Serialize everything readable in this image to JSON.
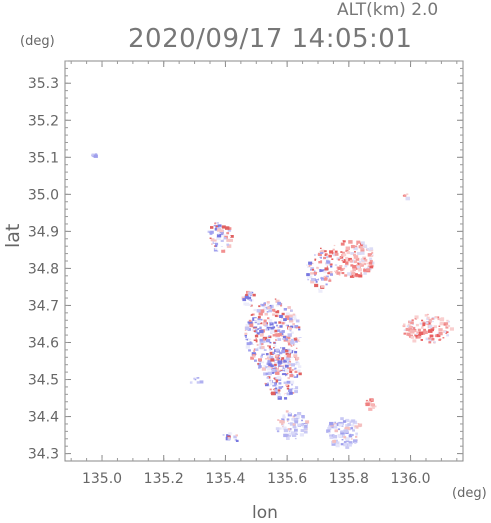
{
  "header": {
    "altitude": "ALT(km) 2.0",
    "datetime": "2020/09/17 14:05:01"
  },
  "chart_data": {
    "type": "heatmap",
    "title": "2020/09/17 14:05:01",
    "subtitle": "ALT(km) 2.0",
    "xlabel": "lon",
    "ylabel": "lat",
    "x_unit": "(deg)",
    "y_unit": "(deg)",
    "xlim": [
      134.88,
      136.17
    ],
    "ylim": [
      34.28,
      35.36
    ],
    "x_ticks": [
      "135.0",
      "135.2",
      "135.4",
      "135.6",
      "135.8",
      "136.0"
    ],
    "y_ticks": [
      "34.3",
      "34.4",
      "34.5",
      "34.6",
      "34.7",
      "34.8",
      "34.9",
      "35.0",
      "35.1",
      "35.2",
      "35.3"
    ],
    "grid": false,
    "colors": {
      "positive": "#f08080",
      "negative": "#8c8cf0",
      "neutral": "#d8d8f4"
    },
    "echo_regions": [
      {
        "lon": 135.55,
        "lat": 34.62,
        "rlon": 0.09,
        "rlat": 0.1,
        "tone": "mixed"
      },
      {
        "lon": 135.58,
        "lat": 34.52,
        "rlon": 0.06,
        "rlat": 0.07,
        "tone": "mixed"
      },
      {
        "lon": 135.61,
        "lat": 34.38,
        "rlon": 0.05,
        "rlat": 0.04,
        "tone": "blue"
      },
      {
        "lon": 135.78,
        "lat": 34.36,
        "rlon": 0.06,
        "rlat": 0.04,
        "tone": "blue"
      },
      {
        "lon": 135.8,
        "lat": 34.83,
        "rlon": 0.08,
        "rlat": 0.05,
        "tone": "red"
      },
      {
        "lon": 135.7,
        "lat": 34.8,
        "rlon": 0.04,
        "rlat": 0.06,
        "tone": "mixed"
      },
      {
        "lon": 136.05,
        "lat": 34.64,
        "rlon": 0.08,
        "rlat": 0.04,
        "tone": "red"
      },
      {
        "lon": 135.38,
        "lat": 34.89,
        "rlon": 0.04,
        "rlat": 0.04,
        "tone": "mixed"
      },
      {
        "lon": 135.3,
        "lat": 34.5,
        "rlon": 0.02,
        "rlat": 0.01,
        "tone": "blue"
      },
      {
        "lon": 134.97,
        "lat": 35.11,
        "rlon": 0.005,
        "rlat": 0.005,
        "tone": "blue"
      },
      {
        "lon": 135.98,
        "lat": 35.0,
        "rlon": 0.006,
        "rlat": 0.008,
        "tone": "red"
      },
      {
        "lon": 135.47,
        "lat": 34.72,
        "rlon": 0.02,
        "rlat": 0.03,
        "tone": "mixed"
      },
      {
        "lon": 135.42,
        "lat": 34.35,
        "rlon": 0.03,
        "rlat": 0.015,
        "tone": "mixed"
      },
      {
        "lon": 135.87,
        "lat": 34.44,
        "rlon": 0.02,
        "rlat": 0.02,
        "tone": "red"
      }
    ]
  }
}
